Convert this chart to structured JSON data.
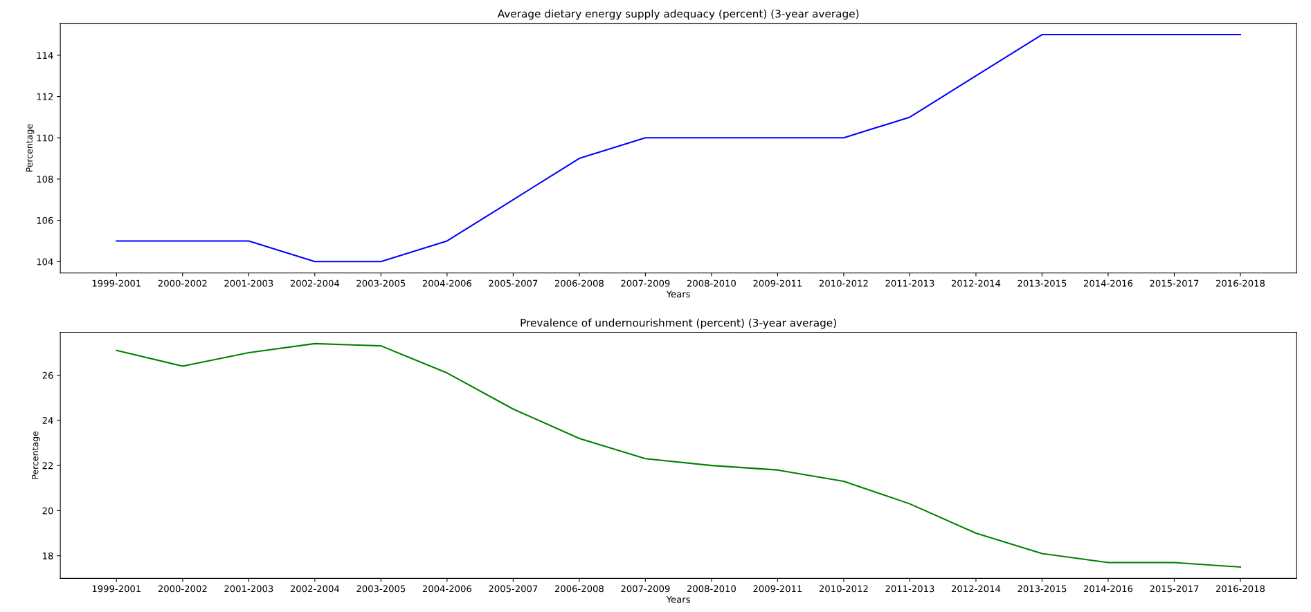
{
  "chart_data": [
    {
      "type": "line",
      "title": "Average dietary energy supply adequacy (percent) (3-year average)",
      "xlabel": "Years",
      "ylabel": "Percentage",
      "categories": [
        "1999-2001",
        "2000-2002",
        "2001-2003",
        "2002-2004",
        "2003-2005",
        "2004-2006",
        "2005-2007",
        "2006-2008",
        "2007-2009",
        "2008-2010",
        "2009-2011",
        "2010-2012",
        "2011-2013",
        "2012-2014",
        "2013-2015",
        "2014-2016",
        "2015-2017",
        "2016-2018"
      ],
      "series": [
        {
          "color": "#0000ff",
          "values": [
            105,
            105,
            105,
            104,
            104,
            105,
            107,
            109,
            110,
            110,
            110,
            110,
            111,
            113,
            115,
            115,
            115,
            115
          ]
        }
      ],
      "ylim": [
        103.45,
        115.55
      ],
      "yticks": [
        104,
        106,
        108,
        110,
        112,
        114
      ],
      "grid": false,
      "legend": false
    },
    {
      "type": "line",
      "title": "Prevalence of undernourishment (percent) (3-year average)",
      "xlabel": "Years",
      "ylabel": "Percentage",
      "categories": [
        "1999-2001",
        "2000-2002",
        "2001-2003",
        "2002-2004",
        "2003-2005",
        "2004-2006",
        "2005-2007",
        "2006-2008",
        "2007-2009",
        "2008-2010",
        "2009-2011",
        "2010-2012",
        "2011-2013",
        "2012-2014",
        "2013-2015",
        "2014-2016",
        "2015-2017",
        "2016-2018"
      ],
      "series": [
        {
          "color": "#008000",
          "values": [
            27.1,
            26.4,
            27.0,
            27.4,
            27.3,
            26.1,
            24.5,
            23.2,
            22.3,
            22.0,
            21.8,
            21.3,
            20.3,
            19.0,
            18.1,
            17.7,
            17.7,
            17.5
          ]
        }
      ],
      "ylim": [
        17.0,
        27.9
      ],
      "yticks": [
        18,
        20,
        22,
        24,
        26
      ],
      "grid": false,
      "legend": false
    }
  ]
}
